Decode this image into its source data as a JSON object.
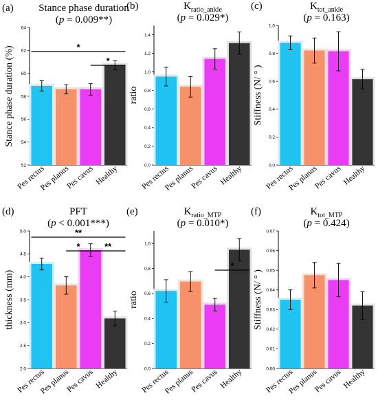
{
  "chart_data": [
    {
      "panel": "(a)",
      "type": "bar",
      "title": "Stance phase duration",
      "p_text": "(p = 0.009**)",
      "ylabel": "Stance phase duration (%)",
      "ylim": [
        52,
        64
      ],
      "yticks": [
        52,
        54,
        56,
        58,
        60,
        62,
        64
      ],
      "categories": [
        "Pes rectus",
        "Pes planus",
        "Pes cavus",
        "Healthy"
      ],
      "values": [
        58.9,
        58.6,
        58.6,
        60.7
      ],
      "errors": [
        0.45,
        0.4,
        0.5,
        0.4
      ],
      "significance": [
        {
          "from": 0,
          "to": 3,
          "label": "*"
        },
        {
          "from": 2,
          "to": 3,
          "label": "*"
        }
      ]
    },
    {
      "panel": "(b)",
      "type": "bar",
      "title": "K",
      "subscript": "ratio_ankle",
      "p_text": "(p = 0.029*)",
      "ylabel": "ratio",
      "ylim": [
        0,
        1.5
      ],
      "yticks": [
        0.0,
        0.2,
        0.4,
        0.6,
        0.8,
        1.0,
        1.2,
        1.4
      ],
      "categories": [
        "Pes rectus",
        "Pes planus",
        "Pes cavus",
        "Healthy"
      ],
      "values": [
        0.95,
        0.84,
        1.14,
        1.31
      ],
      "errors": [
        0.1,
        0.11,
        0.11,
        0.12
      ],
      "significance": []
    },
    {
      "panel": "(c)",
      "type": "bar",
      "title": "K",
      "subscript": "tot_ankle",
      "p_text": "(p = 0.163)",
      "ylabel": "Stiffness (N/ ° )",
      "ylim": [
        0,
        1.0
      ],
      "yticks": [
        0.0,
        0.2,
        0.4,
        0.6,
        0.8,
        1.0
      ],
      "categories": [
        "Pes rectus",
        "Pes planus",
        "Pes cavus",
        "Healthy"
      ],
      "values": [
        0.875,
        0.82,
        0.815,
        0.615
      ],
      "errors": [
        0.05,
        0.09,
        0.14,
        0.07
      ],
      "significance": []
    },
    {
      "panel": "(d)",
      "type": "bar",
      "title": "PFT",
      "p_text": "(p < 0.001***)",
      "ylabel": "thickness (mm)",
      "ylim": [
        2.0,
        5.0
      ],
      "yticks": [
        2.0,
        2.5,
        3.0,
        3.5,
        4.0,
        4.5,
        5.0
      ],
      "categories": [
        "Pes rectus",
        "Pes planus",
        "Pes cavus",
        "Healthy"
      ],
      "values": [
        4.28,
        3.81,
        4.58,
        3.09
      ],
      "errors": [
        0.13,
        0.19,
        0.14,
        0.16
      ],
      "significance": [
        {
          "from": 0,
          "to": 3,
          "label": "**"
        },
        {
          "from": 1,
          "to": 2,
          "label": "*"
        },
        {
          "from": 2,
          "to": 3,
          "label": "**"
        }
      ]
    },
    {
      "panel": "(e)",
      "type": "bar",
      "title": "K",
      "subscript": "ratio_MTP",
      "p_text": "(p = 0.010*)",
      "ylabel": "ratio",
      "ylim": [
        0,
        1.1
      ],
      "yticks": [
        0.0,
        0.2,
        0.4,
        0.6,
        0.8,
        1.0
      ],
      "categories": [
        "Pes rectus",
        "Pes planus",
        "Pes cavus",
        "Healthy"
      ],
      "values": [
        0.62,
        0.695,
        0.51,
        0.95
      ],
      "errors": [
        0.09,
        0.08,
        0.05,
        0.09
      ],
      "significance": [
        {
          "from": 2,
          "to": 3,
          "label": "*"
        }
      ]
    },
    {
      "panel": "(f)",
      "type": "bar",
      "title": "K",
      "subscript": "tot_MTP",
      "p_text": "(p = 0.424)",
      "ylabel": "Stiffness (N/ ° )",
      "ylim": [
        0,
        0.07
      ],
      "yticks": [
        0.0,
        0.01,
        0.02,
        0.03,
        0.04,
        0.05,
        0.06,
        0.07
      ],
      "categories": [
        "Pes rectus",
        "Pes planus",
        "Pes cavus",
        "Healthy"
      ],
      "values": [
        0.035,
        0.0475,
        0.045,
        0.032
      ],
      "errors": [
        0.005,
        0.0065,
        0.0085,
        0.007
      ],
      "significance": []
    }
  ],
  "colors": {
    "bars": [
      "#1fc4f2",
      "#f7916a",
      "#ea3cf5",
      "#333333"
    ],
    "halo": [
      "#cdf1fb",
      "#fde0d2",
      "#f6cffb",
      "#e3e3e3"
    ],
    "labels": [
      "#1fc4f2",
      "#f7916a",
      "#ea3cf5",
      "#000000"
    ]
  }
}
